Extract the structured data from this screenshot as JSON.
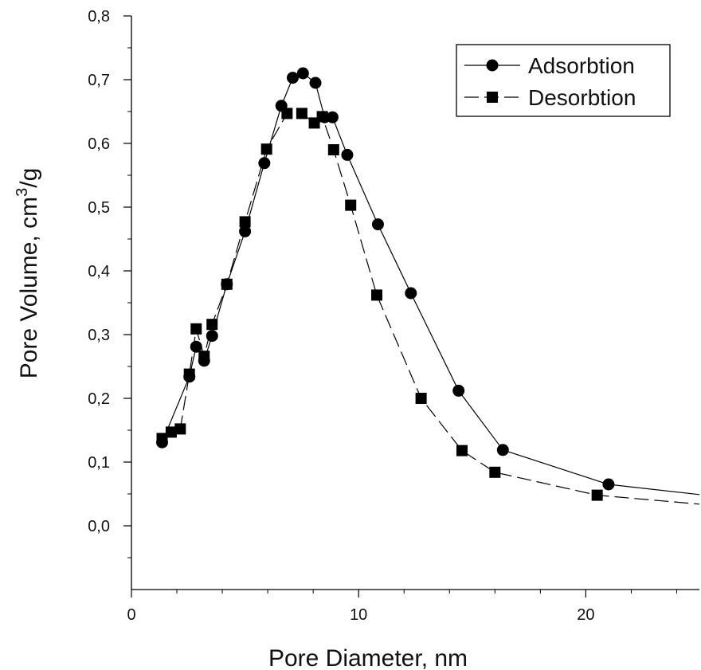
{
  "chart_data": {
    "type": "line",
    "xlabel": "Pore Diameter, nm",
    "ylabel_main": "Pore Volume,  cm",
    "ylabel_sup": "3",
    "ylabel_tail": "/g",
    "xlim": [
      0,
      25
    ],
    "ylim": [
      -0.1,
      0.8
    ],
    "x_ticks": [
      {
        "value": 0,
        "label": "0"
      },
      {
        "value": 10,
        "label": "10"
      },
      {
        "value": 20,
        "label": "20"
      }
    ],
    "y_ticks": [
      {
        "value": 0.0,
        "label": "0,0"
      },
      {
        "value": 0.1,
        "label": "0,1"
      },
      {
        "value": 0.2,
        "label": "0,2"
      },
      {
        "value": 0.3,
        "label": "0,3"
      },
      {
        "value": 0.4,
        "label": "0,4"
      },
      {
        "value": 0.5,
        "label": "0,5"
      },
      {
        "value": 0.6,
        "label": "0,6"
      },
      {
        "value": 0.7,
        "label": "0,7"
      },
      {
        "value": 0.8,
        "label": "0,8"
      }
    ],
    "grid": false,
    "legend_position": "top-right",
    "series": [
      {
        "name": "Adsorbtion",
        "marker": "circle",
        "line": "solid",
        "points": [
          [
            1.35,
            0.131
          ],
          [
            2.55,
            0.234
          ],
          [
            2.85,
            0.281
          ],
          [
            3.2,
            0.259
          ],
          [
            3.55,
            0.298
          ],
          [
            4.2,
            0.379
          ],
          [
            5.0,
            0.462
          ],
          [
            5.85,
            0.569
          ],
          [
            6.6,
            0.659
          ],
          [
            7.1,
            0.703
          ],
          [
            7.55,
            0.71
          ],
          [
            8.1,
            0.695
          ],
          [
            8.5,
            0.641
          ],
          [
            8.85,
            0.641
          ],
          [
            9.5,
            0.582
          ],
          [
            10.85,
            0.473
          ],
          [
            12.3,
            0.365
          ],
          [
            14.4,
            0.212
          ],
          [
            16.35,
            0.119
          ],
          [
            21.0,
            0.065
          ]
        ],
        "tail": [
          25,
          0.049
        ]
      },
      {
        "name": "Desorbtion",
        "marker": "square",
        "line": "dashed",
        "points": [
          [
            1.35,
            0.137
          ],
          [
            1.75,
            0.147
          ],
          [
            2.15,
            0.152
          ],
          [
            2.55,
            0.238
          ],
          [
            2.85,
            0.309
          ],
          [
            3.2,
            0.266
          ],
          [
            3.55,
            0.316
          ],
          [
            4.2,
            0.379
          ],
          [
            5.0,
            0.477
          ],
          [
            5.95,
            0.591
          ],
          [
            6.85,
            0.647
          ],
          [
            7.5,
            0.647
          ],
          [
            8.05,
            0.632
          ],
          [
            8.4,
            0.642
          ],
          [
            8.9,
            0.59
          ],
          [
            9.65,
            0.503
          ],
          [
            10.8,
            0.362
          ],
          [
            12.75,
            0.2
          ],
          [
            14.55,
            0.118
          ],
          [
            16.0,
            0.084
          ],
          [
            20.5,
            0.048
          ]
        ],
        "tail": [
          25,
          0.034
        ]
      }
    ]
  }
}
